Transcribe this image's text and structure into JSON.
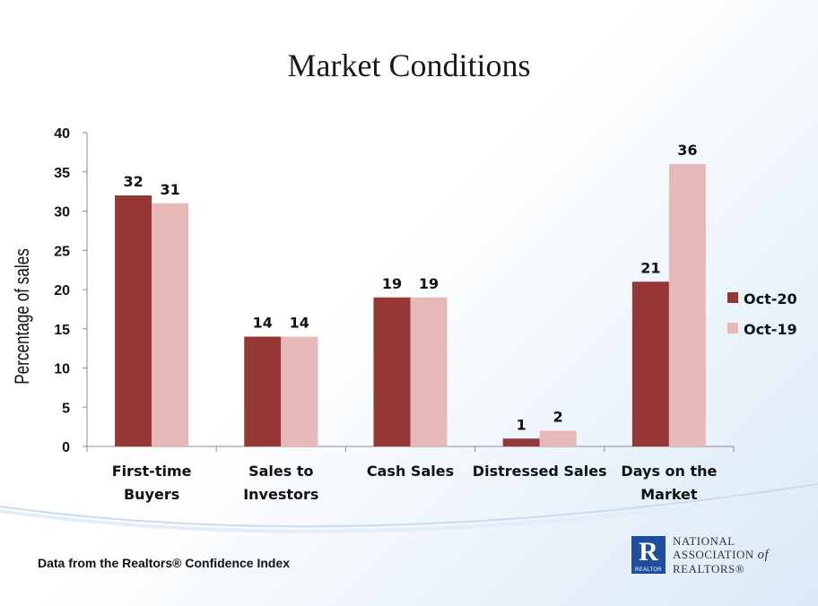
{
  "chart_data": {
    "type": "bar",
    "title": "Market Conditions",
    "xlabel": "",
    "ylabel": "Percentage of  sales",
    "ylim": [
      0,
      40
    ],
    "yticks": [
      0,
      5,
      10,
      15,
      20,
      25,
      30,
      35,
      40
    ],
    "categories": [
      [
        "First-time",
        "Buyers"
      ],
      [
        "Sales to",
        "Investors"
      ],
      [
        "Cash Sales"
      ],
      [
        "Distressed Sales"
      ],
      [
        "Days on the",
        "Market"
      ]
    ],
    "series": [
      {
        "name": "Oct-20",
        "color": "#953735",
        "values": [
          32,
          14,
          19,
          1,
          21
        ]
      },
      {
        "name": "Oct-19",
        "color": "#e6b9b8",
        "values": [
          31,
          14,
          19,
          2,
          36
        ]
      }
    ],
    "data_labels": true,
    "legend": "right",
    "grid": false
  },
  "footer": {
    "note": "Data from the Realtors® Confidence Index"
  },
  "logo": {
    "mark_letter": "R",
    "mark_caption": "REALTOR",
    "line1": "NATIONAL",
    "line2": "ASSOCIATION",
    "line2_suffix": "of",
    "line3": "REALTORS®"
  }
}
